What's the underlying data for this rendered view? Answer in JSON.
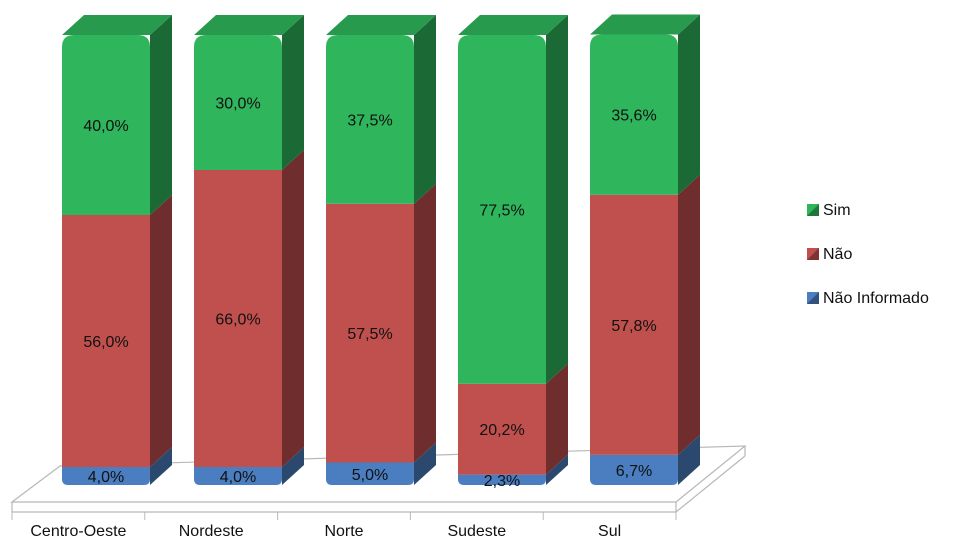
{
  "chart_data": {
    "type": "bar",
    "stacked": true,
    "percent_stacked": true,
    "three_d": true,
    "categories": [
      "Centro-Oeste",
      "Nordeste",
      "Norte",
      "Sudeste",
      "Sul"
    ],
    "series": [
      {
        "name": "Não Informado",
        "values": [
          4.0,
          4.0,
          5.0,
          2.3,
          6.7
        ],
        "labels": [
          "4,0%",
          "4,0%",
          "5,0%",
          "2,3%",
          "6,7%"
        ],
        "color": "#4a7ec0"
      },
      {
        "name": "Não",
        "values": [
          56.0,
          66.0,
          57.5,
          20.2,
          57.8
        ],
        "labels": [
          "56,0%",
          "66,0%",
          "57,5%",
          "20,2%",
          "57,8%"
        ],
        "color": "#c0504d"
      },
      {
        "name": "Sim",
        "values": [
          40.0,
          30.0,
          37.5,
          77.5,
          35.6
        ],
        "labels": [
          "40,0%",
          "30,0%",
          "37,5%",
          "77,5%",
          "35,6%"
        ],
        "color": "#2fb55b"
      }
    ],
    "legend_order": [
      "Sim",
      "Não",
      "Não Informado"
    ],
    "legend_position": "right",
    "ylim": [
      0,
      100
    ],
    "grid": false,
    "title": "",
    "xlabel": "",
    "ylabel": ""
  }
}
